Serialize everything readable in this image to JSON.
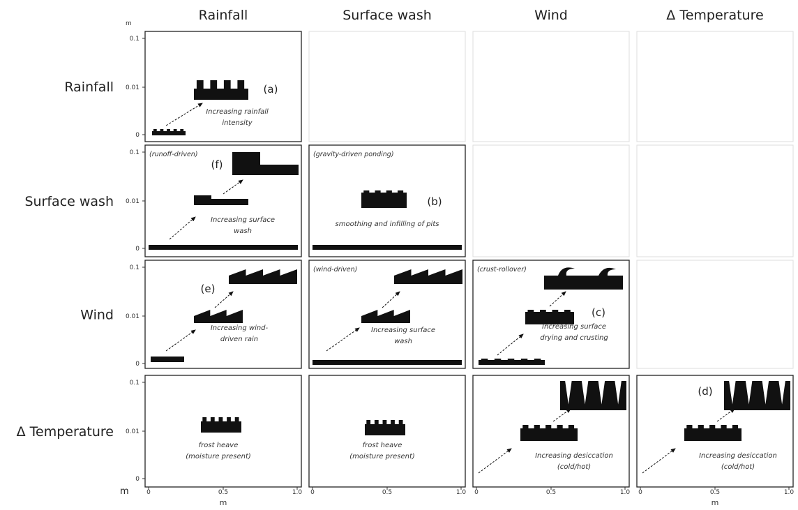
{
  "column_headers": [
    "Rainfall",
    "Surface wash",
    "Wind",
    "Δ Temperature"
  ],
  "axes": {
    "y_unit": "m",
    "y_ticks": [
      "0.1",
      "0.01",
      "0"
    ],
    "x_unit": "m",
    "x_ticks": [
      "0",
      "0.5",
      "1.0"
    ]
  },
  "rows": [
    {
      "header": "Rainfall",
      "panels": [
        {
          "label": "(a)",
          "caption": [
            "Increasing rainfall",
            "intensity"
          ]
        }
      ]
    },
    {
      "header": "Surface wash",
      "panels": [
        {
          "note": "(runoff-driven)",
          "label": "(f)",
          "caption": [
            "Increasing surface",
            "wash"
          ]
        },
        {
          "note": "(gravity-driven ponding)",
          "label": "(b)",
          "caption": [
            "smoothing and infilling of pits"
          ]
        }
      ]
    },
    {
      "header": "Wind",
      "panels": [
        {
          "label": "(e)",
          "caption": [
            "Increasing wind-",
            "driven rain"
          ]
        },
        {
          "note": "(wind-driven)",
          "caption": [
            "Increasing surface",
            "wash"
          ]
        },
        {
          "note": "(crust-rollover)",
          "label": "(c)",
          "caption": [
            "Increasing surface",
            "drying and crusting"
          ]
        }
      ]
    },
    {
      "header": "Δ Temperature",
      "panels": [
        {
          "caption": [
            "frost heave",
            "(moisture present)"
          ]
        },
        {
          "caption": [
            "frost heave",
            "(moisture present)"
          ]
        },
        {
          "caption": [
            "Increasing desiccation",
            "(cold/hot)"
          ]
        },
        {
          "label": "(d)",
          "caption": [
            "Increasing desiccation",
            "(cold/hot)"
          ]
        }
      ]
    }
  ]
}
